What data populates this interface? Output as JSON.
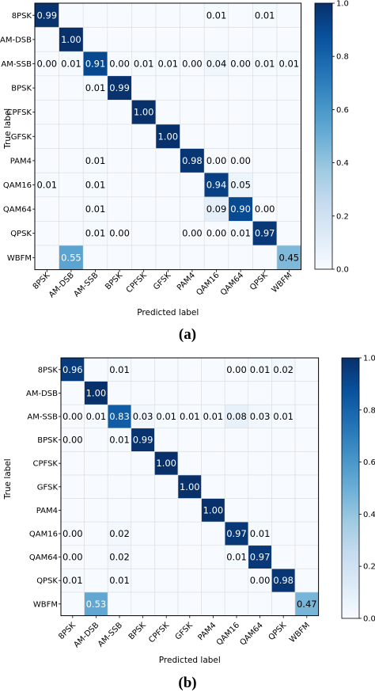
{
  "colors": {
    "low": "#f7fbff",
    "high": "#08306b",
    "grid": "#ffffff",
    "frame": "#000000"
  },
  "chart_data": [
    {
      "type": "heatmap",
      "caption": "(a)",
      "xlabel": "Predicted label",
      "ylabel": "True label",
      "x_categories": [
        "8PSK",
        "AM-DSB",
        "AM-SSB",
        "BPSK",
        "CPFSK",
        "GFSK",
        "PAM4",
        "QAM16",
        "QAM64",
        "QPSK",
        "WBFM"
      ],
      "y_categories": [
        "8PSK",
        "AM-DSB",
        "AM-SSB",
        "BPSK",
        "CPFSK",
        "GFSK",
        "PAM4",
        "QAM16",
        "QAM64",
        "QPSK",
        "WBFM"
      ],
      "values": [
        [
          0.99,
          null,
          null,
          null,
          null,
          null,
          null,
          0.01,
          null,
          0.01,
          null
        ],
        [
          null,
          1.0,
          null,
          null,
          null,
          null,
          null,
          null,
          null,
          null,
          null
        ],
        [
          0.0,
          0.01,
          0.91,
          0.0,
          0.01,
          0.01,
          0.0,
          0.04,
          0.0,
          0.01,
          0.01
        ],
        [
          null,
          null,
          0.01,
          0.99,
          null,
          null,
          null,
          null,
          null,
          null,
          null
        ],
        [
          null,
          null,
          null,
          null,
          1.0,
          null,
          null,
          null,
          null,
          null,
          null
        ],
        [
          null,
          null,
          null,
          null,
          null,
          1.0,
          null,
          null,
          null,
          null,
          null
        ],
        [
          null,
          null,
          0.01,
          null,
          null,
          null,
          0.98,
          0.0,
          0.0,
          null,
          null
        ],
        [
          0.01,
          null,
          0.01,
          null,
          null,
          null,
          null,
          0.94,
          0.05,
          null,
          null
        ],
        [
          null,
          null,
          0.01,
          null,
          null,
          null,
          null,
          0.09,
          0.9,
          0.0,
          null
        ],
        [
          null,
          null,
          0.01,
          0.0,
          null,
          null,
          0.0,
          0.0,
          0.01,
          0.97,
          null
        ],
        [
          null,
          0.55,
          null,
          null,
          null,
          null,
          null,
          null,
          null,
          null,
          0.45
        ]
      ],
      "colorbar": {
        "range": [
          0.0,
          1.0
        ],
        "ticks": [
          "0.0",
          "0.2",
          "0.4",
          "0.6",
          "0.8",
          "1.0"
        ]
      }
    },
    {
      "type": "heatmap",
      "caption": "(b)",
      "xlabel": "Predicted label",
      "ylabel": "True label",
      "x_categories": [
        "8PSK",
        "AM-DSB",
        "AM-SSB",
        "BPSK",
        "CPFSK",
        "GFSK",
        "PAM4",
        "QAM16",
        "QAM64",
        "QPSK",
        "WBFM"
      ],
      "y_categories": [
        "8PSK",
        "AM-DSB",
        "AM-SSB",
        "BPSK",
        "CPFSK",
        "GFSK",
        "PAM4",
        "QAM16",
        "QAM64",
        "QPSK",
        "WBFM"
      ],
      "values": [
        [
          0.96,
          null,
          0.01,
          null,
          null,
          null,
          null,
          0.0,
          0.01,
          0.02,
          null
        ],
        [
          null,
          1.0,
          null,
          null,
          null,
          null,
          null,
          null,
          null,
          null,
          null
        ],
        [
          0.0,
          0.01,
          0.83,
          0.03,
          0.01,
          0.01,
          0.01,
          0.08,
          0.03,
          0.01,
          null
        ],
        [
          0.0,
          null,
          0.01,
          0.99,
          null,
          null,
          null,
          null,
          null,
          null,
          null
        ],
        [
          null,
          null,
          null,
          null,
          1.0,
          null,
          null,
          null,
          null,
          null,
          null
        ],
        [
          null,
          null,
          null,
          null,
          null,
          1.0,
          null,
          null,
          null,
          null,
          null
        ],
        [
          null,
          null,
          null,
          null,
          null,
          null,
          1.0,
          null,
          null,
          null,
          null
        ],
        [
          0.0,
          null,
          0.02,
          null,
          null,
          null,
          null,
          0.97,
          0.01,
          null,
          null
        ],
        [
          0.0,
          null,
          0.02,
          null,
          null,
          null,
          null,
          0.01,
          0.97,
          null,
          null
        ],
        [
          0.01,
          null,
          0.01,
          null,
          null,
          null,
          null,
          null,
          0.0,
          0.98,
          null
        ],
        [
          null,
          0.53,
          null,
          null,
          null,
          null,
          null,
          null,
          null,
          null,
          0.47
        ]
      ],
      "colorbar": {
        "range": [
          0.0,
          1.0
        ],
        "ticks": [
          "0.0",
          "0.2",
          "0.4",
          "0.6",
          "0.8",
          "1.0"
        ]
      }
    }
  ]
}
